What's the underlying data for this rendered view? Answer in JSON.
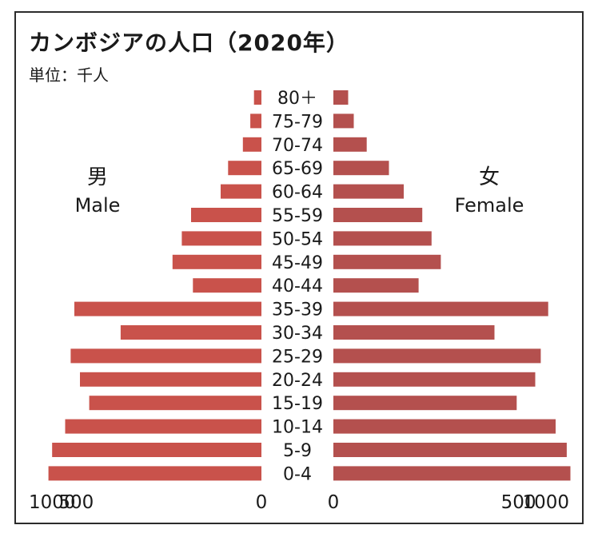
{
  "title": "カンボジアの人口（2020年）",
  "unit": "単位：千人",
  "male_label": {
    "jp": "男",
    "en": "Male"
  },
  "female_label": {
    "jp": "女",
    "en": "Female"
  },
  "colors": {
    "male": "#c9524b",
    "female": "#b4504e",
    "text": "#1a1a1a",
    "frame": "#2b2b2b"
  },
  "chart_data": {
    "type": "bar",
    "orientation": "horizontal",
    "title": "カンボジアの人口（2020年）",
    "unit": "千人",
    "categories": [
      "80＋",
      "75-79",
      "70-74",
      "65-69",
      "60-64",
      "55-59",
      "50-54",
      "45-49",
      "40-44",
      "35-39",
      "30-34",
      "25-29",
      "20-24",
      "15-19",
      "10-14",
      "5-9",
      "0-4"
    ],
    "series": [
      {
        "name": "Male",
        "values": [
          20,
          30,
          50,
          90,
          110,
          190,
          215,
          240,
          185,
          505,
          380,
          515,
          490,
          465,
          530,
          565,
          575
        ]
      },
      {
        "name": "Female",
        "values": [
          40,
          55,
          90,
          150,
          190,
          240,
          265,
          290,
          230,
          580,
          435,
          560,
          545,
          495,
          600,
          630,
          640
        ]
      }
    ],
    "xlim_male": [
      1000,
      0
    ],
    "xlim_female": [
      0,
      1000
    ],
    "x_ticks_male": [
      "1000",
      "500",
      "0"
    ],
    "x_ticks_female": [
      "0",
      "500",
      "1000"
    ],
    "grid": false
  }
}
